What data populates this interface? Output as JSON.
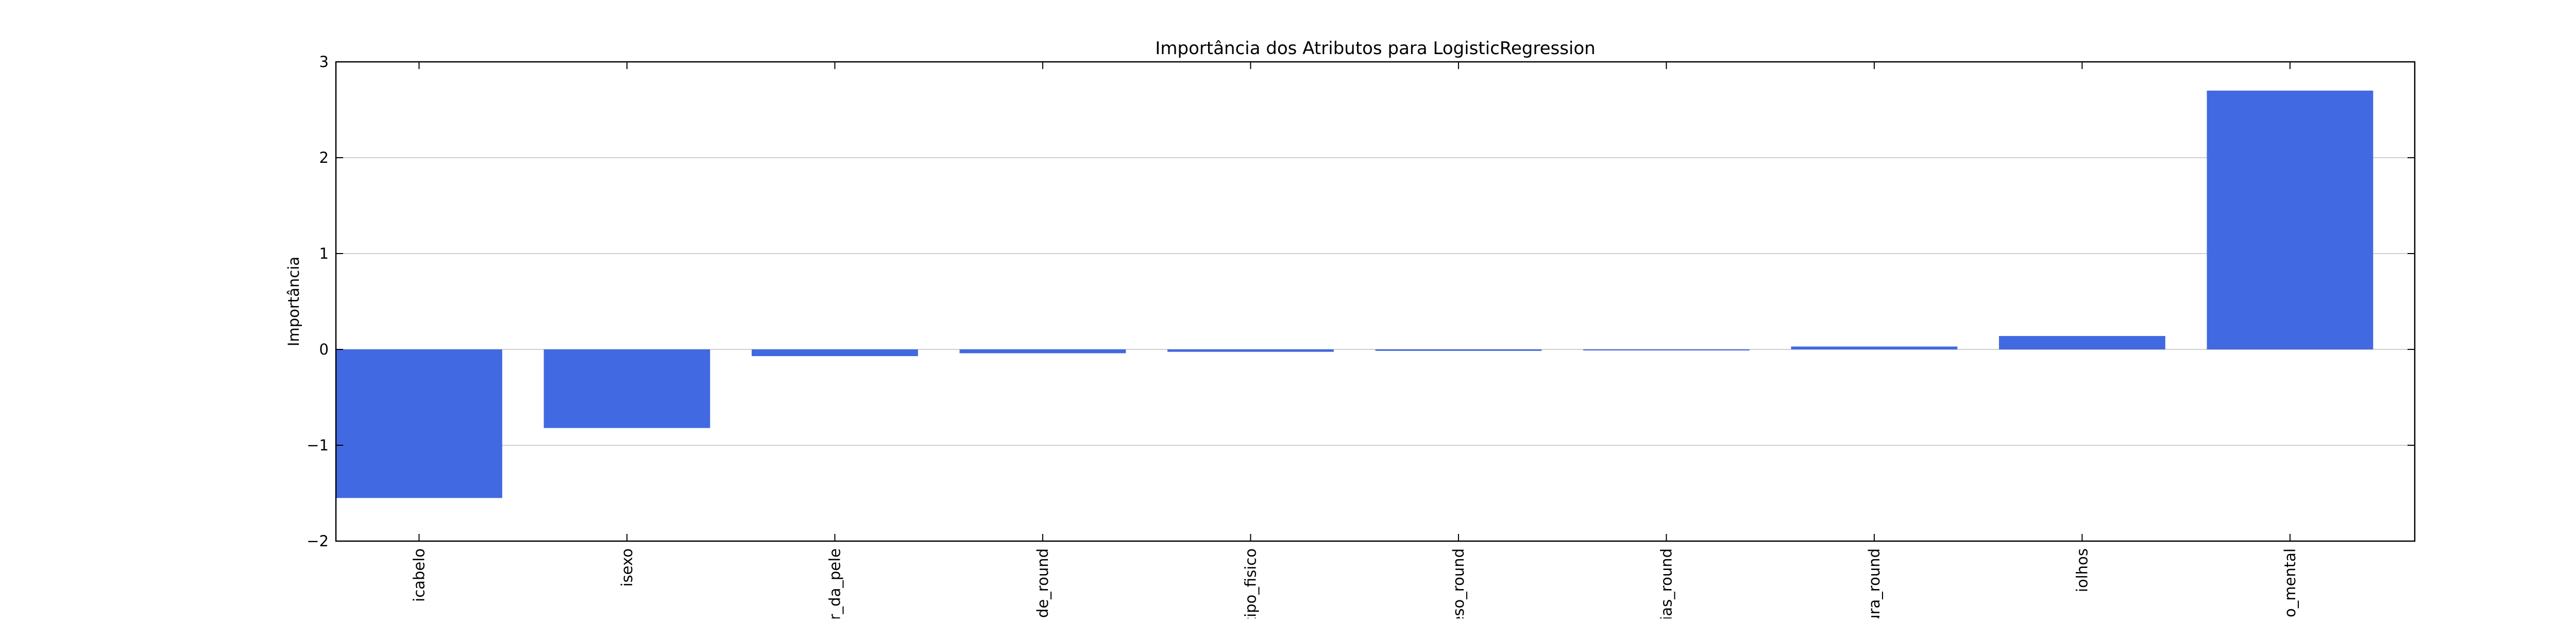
{
  "chart_data": {
    "type": "bar",
    "title": "Importância dos Atributos para LogisticRegression",
    "xlabel": "",
    "ylabel": "Importância",
    "ylim": [
      -2,
      3
    ],
    "yticks": [
      -2,
      -1,
      0,
      1,
      2,
      3
    ],
    "ytick_labels": [
      "−2",
      "−1",
      "0",
      "1",
      "2",
      "3"
    ],
    "grid": "horizontal",
    "bar_color": "#4169e1",
    "categories": [
      "icabelo",
      "isexo",
      "r_da_pele",
      "de_round",
      "tipo_fisico",
      "eso_round",
      "ias_round",
      "ura_round",
      "iolhos",
      "o_mental"
    ],
    "values": [
      -1.55,
      -0.82,
      -0.07,
      -0.04,
      -0.025,
      -0.015,
      -0.01,
      0.03,
      0.14,
      2.7
    ]
  }
}
